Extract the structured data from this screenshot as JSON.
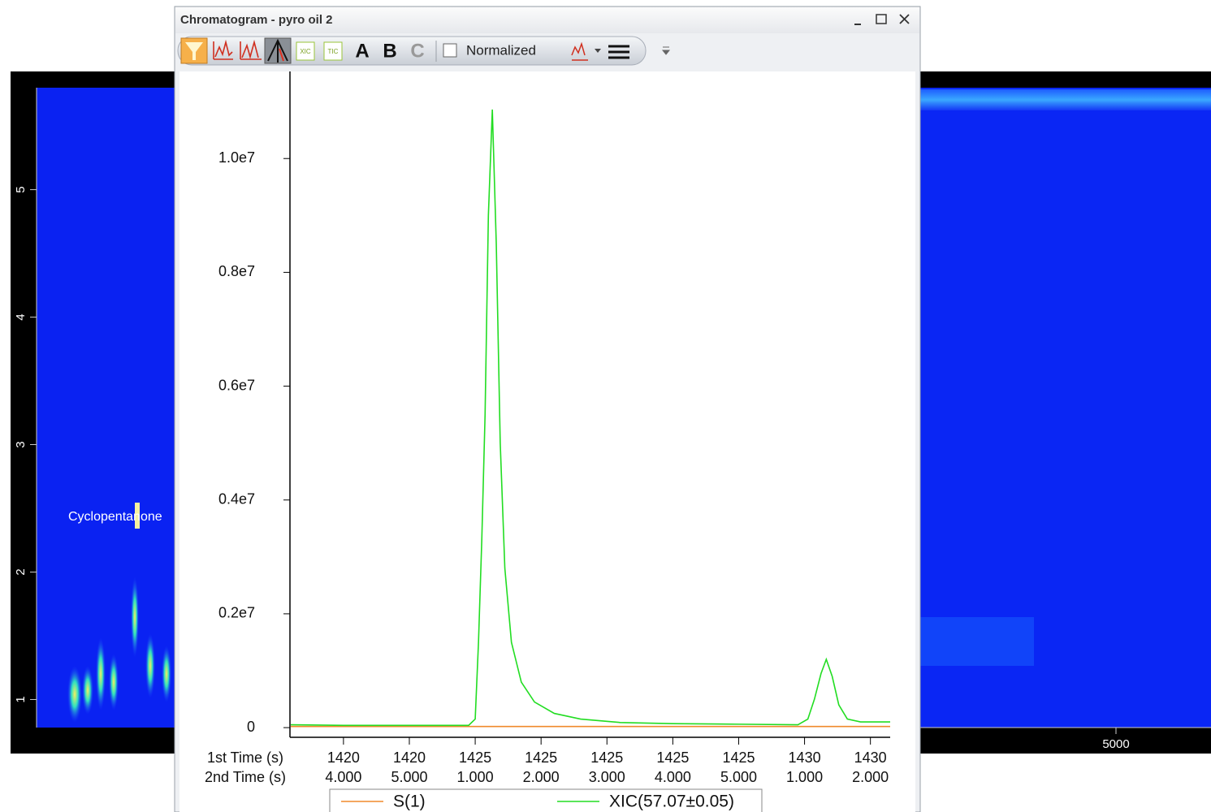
{
  "window": {
    "title": "Chromatogram - pyro oil 2",
    "toolbar": {
      "xic_button": "XIC",
      "tic_button": "TIC",
      "a_button": "A",
      "b_button": "B",
      "c_button": "C",
      "normalized_checkbox": "Normalized"
    }
  },
  "left_plot": {
    "yticks": [
      {
        "value": 1,
        "label": "1"
      },
      {
        "value": 2,
        "label": "2"
      },
      {
        "value": 3,
        "label": "3"
      },
      {
        "value": 4,
        "label": "4"
      },
      {
        "value": 5,
        "label": "5"
      }
    ],
    "ylim": [
      0.78,
      5.8
    ],
    "annotation": "Cyclopentanone"
  },
  "right_plot": {
    "xtick_label": "5000"
  },
  "chart_data": {
    "type": "line",
    "x": [
      1423.2,
      1424,
      1425,
      1425.9,
      1426.0,
      1426.05,
      1426.1,
      1426.15,
      1426.2,
      1426.26,
      1426.32,
      1426.38,
      1426.45,
      1426.55,
      1426.7,
      1426.9,
      1427.2,
      1427.6,
      1428.2,
      1429,
      1430,
      1430.9,
      1431.05,
      1431.15,
      1431.25,
      1431.33,
      1431.42,
      1431.52,
      1431.65,
      1431.85,
      1432.3
    ],
    "series": [
      {
        "name": "S(1)",
        "color": "#f08a2c",
        "values": [
          20000,
          20000,
          20000,
          20000,
          20000,
          20000,
          20000,
          20000,
          20000,
          20000,
          20000,
          20000,
          20000,
          20000,
          20000,
          20000,
          20000,
          20000,
          20000,
          20000,
          20000,
          20000,
          20000,
          20000,
          20000,
          20000,
          20000,
          20000,
          20000,
          20000,
          20000
        ]
      },
      {
        "name": "XIC(57.07±0.05)",
        "color": "#22dd22",
        "values": [
          50000,
          40000,
          40000,
          40000,
          150000,
          1500000,
          3300000,
          5500000,
          9000000,
          10860000,
          8500000,
          5000000,
          2800000,
          1500000,
          800000,
          450000,
          250000,
          150000,
          90000,
          70000,
          60000,
          50000,
          150000,
          500000,
          950000,
          1200000,
          900000,
          400000,
          150000,
          100000,
          100000
        ]
      }
    ],
    "xlim": [
      1423.2,
      1432.3
    ],
    "ylim": [
      -170000,
      11530000
    ],
    "yticks": [
      0,
      {
        "value": 2000000,
        "label": "0.2e7"
      },
      {
        "value": 4000000,
        "label": "0.4e7"
      },
      {
        "value": 6000000,
        "label": "0.6e7"
      },
      {
        "value": 8000000,
        "label": "0.8e7"
      },
      {
        "value": 10000000,
        "label": "1.0e7"
      }
    ],
    "x_axis_rows": [
      "1st Time (s)",
      "2nd Time (s)"
    ],
    "xticks": [
      {
        "value": 1424,
        "label": "1420"
      },
      {
        "value": 1425,
        "label": "1420"
      },
      {
        "value": 1426,
        "label": "1425"
      },
      {
        "value": 1427,
        "label": "1425"
      },
      {
        "value": 1428,
        "label": "1425"
      },
      {
        "value": 1429,
        "label": "1425"
      },
      {
        "value": 1430,
        "label": "1425"
      },
      {
        "value": 1431,
        "label": "1430"
      },
      {
        "value": 1432,
        "label": "1430"
      }
    ],
    "xticks2": [
      {
        "value": 1424,
        "label": "4.000"
      },
      {
        "value": 1425,
        "label": "5.000"
      },
      {
        "value": 1426,
        "label": "1.000"
      },
      {
        "value": 1427,
        "label": "2.000"
      },
      {
        "value": 1428,
        "label": "3.000"
      },
      {
        "value": 1429,
        "label": "4.000"
      },
      {
        "value": 1430,
        "label": "5.000"
      },
      {
        "value": 1431,
        "label": "1.000"
      },
      {
        "value": 1432,
        "label": "2.000"
      }
    ],
    "legend": "bottom"
  }
}
